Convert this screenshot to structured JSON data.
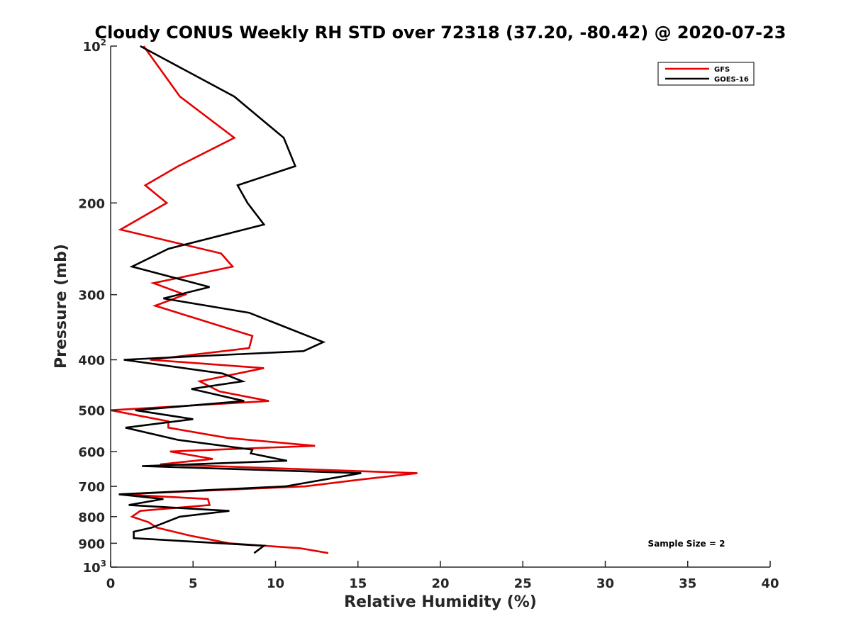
{
  "chart_data": {
    "type": "line",
    "title": "Cloudy CONUS Weekly RH STD over 72318 (37.20, -80.42) @ 2020-07-23",
    "xlabel": "Relative Humidity (%)",
    "ylabel": "Pressure (mb)",
    "xlim": [
      0,
      40
    ],
    "ylim": [
      100,
      1000
    ],
    "yscale": "log",
    "y_reversed": true,
    "x_ticks": [
      {
        "value": 0,
        "label": "0"
      },
      {
        "value": 5,
        "label": "5"
      },
      {
        "value": 10,
        "label": "10"
      },
      {
        "value": 15,
        "label": "15"
      },
      {
        "value": 20,
        "label": "20"
      },
      {
        "value": 25,
        "label": "25"
      },
      {
        "value": 30,
        "label": "30"
      },
      {
        "value": 35,
        "label": "35"
      },
      {
        "value": 40,
        "label": "40"
      }
    ],
    "y_ticks": [
      {
        "value": 100,
        "label": "10",
        "sup": "2"
      },
      {
        "value": 200,
        "label": "200"
      },
      {
        "value": 300,
        "label": "300"
      },
      {
        "value": 400,
        "label": "400"
      },
      {
        "value": 500,
        "label": "500"
      },
      {
        "value": 600,
        "label": "600"
      },
      {
        "value": 700,
        "label": "700"
      },
      {
        "value": 800,
        "label": "800"
      },
      {
        "value": 900,
        "label": "900"
      },
      {
        "value": 1000,
        "label": "10",
        "sup": "3"
      }
    ],
    "grid": false,
    "legend_position": "top-right",
    "annotation": "Sample Size = 2",
    "series": [
      {
        "name": "GFS",
        "color": "#e60000",
        "points": [
          [
            2.0,
            100
          ],
          [
            4.2,
            125
          ],
          [
            7.5,
            150
          ],
          [
            4.1,
            170
          ],
          [
            2.1,
            185
          ],
          [
            3.4,
            200
          ],
          [
            0.6,
            225
          ],
          [
            6.7,
            250
          ],
          [
            7.4,
            265
          ],
          [
            2.6,
            285
          ],
          [
            4.5,
            300
          ],
          [
            2.7,
            315
          ],
          [
            8.6,
            360
          ],
          [
            8.4,
            380
          ],
          [
            2.4,
            400
          ],
          [
            9.3,
            415
          ],
          [
            5.4,
            440
          ],
          [
            6.6,
            460
          ],
          [
            9.6,
            480
          ],
          [
            0.0,
            500
          ],
          [
            3.5,
            525
          ],
          [
            3.5,
            540
          ],
          [
            7.1,
            565
          ],
          [
            12.4,
            585
          ],
          [
            3.6,
            600
          ],
          [
            6.2,
            620
          ],
          [
            3.0,
            635
          ],
          [
            18.6,
            660
          ],
          [
            15.0,
            680
          ],
          [
            11.8,
            700
          ],
          [
            0.6,
            725
          ],
          [
            5.9,
            740
          ],
          [
            6.0,
            760
          ],
          [
            1.8,
            780
          ],
          [
            1.3,
            800
          ],
          [
            2.3,
            820
          ],
          [
            2.8,
            840
          ],
          [
            4.8,
            870
          ],
          [
            7.2,
            900
          ],
          [
            11.5,
            920
          ],
          [
            13.2,
            940
          ]
        ]
      },
      {
        "name": "GOES-16",
        "color": "#000000",
        "points": [
          [
            1.8,
            100
          ],
          [
            7.5,
            125
          ],
          [
            10.5,
            150
          ],
          [
            11.2,
            170
          ],
          [
            7.7,
            185
          ],
          [
            8.3,
            200
          ],
          [
            9.3,
            220
          ],
          [
            3.5,
            245
          ],
          [
            1.3,
            265
          ],
          [
            6.0,
            290
          ],
          [
            3.2,
            305
          ],
          [
            8.4,
            325
          ],
          [
            12.9,
            370
          ],
          [
            11.7,
            385
          ],
          [
            4.3,
            395
          ],
          [
            0.8,
            400
          ],
          [
            6.8,
            425
          ],
          [
            8.0,
            440
          ],
          [
            4.9,
            455
          ],
          [
            8.1,
            480
          ],
          [
            1.5,
            500
          ],
          [
            5.0,
            520
          ],
          [
            0.9,
            540
          ],
          [
            4.1,
            570
          ],
          [
            8.6,
            595
          ],
          [
            8.5,
            605
          ],
          [
            10.7,
            625
          ],
          [
            1.9,
            640
          ],
          [
            15.2,
            660
          ],
          [
            10.6,
            700
          ],
          [
            0.5,
            725
          ],
          [
            3.2,
            740
          ],
          [
            1.1,
            760
          ],
          [
            7.2,
            780
          ],
          [
            4.2,
            800
          ],
          [
            2.5,
            840
          ],
          [
            1.4,
            855
          ],
          [
            1.4,
            880
          ],
          [
            9.3,
            910
          ],
          [
            8.7,
            940
          ]
        ]
      }
    ]
  }
}
